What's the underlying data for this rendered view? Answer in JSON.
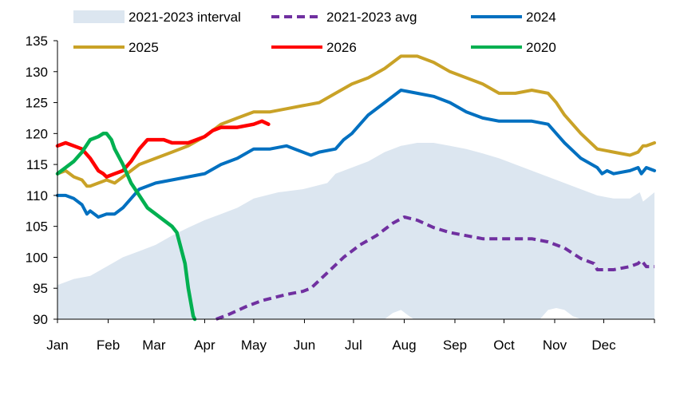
{
  "chart_data": {
    "type": "line",
    "title": "",
    "xlabel": "",
    "ylabel": "",
    "ylim": [
      90,
      135
    ],
    "yticks": [
      90,
      95,
      100,
      105,
      110,
      115,
      120,
      125,
      130,
      135
    ],
    "xlim": [
      0,
      365
    ],
    "months": [
      "Jan",
      "Feb",
      "Mar",
      "Apr",
      "May",
      "Jun",
      "Jul",
      "Aug",
      "Sep",
      "Oct",
      "Nov",
      "Dec"
    ],
    "month_starts": [
      0,
      31,
      59,
      90,
      120,
      151,
      181,
      212,
      243,
      273,
      304,
      334
    ],
    "legend": [
      {
        "name": "2021-2023 interval",
        "kind": "area",
        "color": "#dce6f0"
      },
      {
        "name": "2021-2023 avg",
        "kind": "dash",
        "color": "#7030a0"
      },
      {
        "name": "2024",
        "kind": "line",
        "color": "#0070c0"
      },
      {
        "name": "2025",
        "kind": "line",
        "color": "#c9a227"
      },
      {
        "name": "2026",
        "kind": "line",
        "color": "#ff0000"
      },
      {
        "name": "2020",
        "kind": "line",
        "color": "#00b050"
      }
    ],
    "interval": {
      "name": "2021-2023 interval",
      "color": "#dce6f0",
      "upper": [
        [
          0,
          95.5
        ],
        [
          10,
          96.5
        ],
        [
          20,
          97
        ],
        [
          30,
          98.5
        ],
        [
          40,
          100
        ],
        [
          50,
          101
        ],
        [
          60,
          102
        ],
        [
          70,
          103.5
        ],
        [
          80,
          104.8
        ],
        [
          90,
          106
        ],
        [
          100,
          107
        ],
        [
          110,
          108
        ],
        [
          120,
          109.5
        ],
        [
          135,
          110.5
        ],
        [
          150,
          111
        ],
        [
          165,
          112
        ],
        [
          170,
          113.5
        ],
        [
          180,
          114.5
        ],
        [
          190,
          115.5
        ],
        [
          200,
          117
        ],
        [
          210,
          118
        ],
        [
          220,
          118.5
        ],
        [
          230,
          118.5
        ],
        [
          240,
          118
        ],
        [
          250,
          117.5
        ],
        [
          260,
          116.8
        ],
        [
          270,
          116
        ],
        [
          280,
          115
        ],
        [
          290,
          114
        ],
        [
          300,
          113
        ],
        [
          310,
          112
        ],
        [
          320,
          111
        ],
        [
          330,
          110
        ],
        [
          340,
          109.5
        ],
        [
          350,
          109.5
        ],
        [
          356,
          110.5
        ],
        [
          358,
          109
        ],
        [
          365,
          110.5
        ]
      ],
      "lower": [
        [
          0,
          90
        ],
        [
          200,
          90
        ],
        [
          205,
          91
        ],
        [
          210,
          91.5
        ],
        [
          215,
          90.5
        ],
        [
          218,
          90
        ],
        [
          295,
          90
        ],
        [
          300,
          91.5
        ],
        [
          305,
          91.8
        ],
        [
          310,
          91.5
        ],
        [
          315,
          90.5
        ],
        [
          320,
          90
        ],
        [
          365,
          90
        ]
      ]
    },
    "series": [
      {
        "name": "2021-2023 avg",
        "color": "#7030a0",
        "dash": true,
        "width": 4,
        "points": [
          [
            97,
            90
          ],
          [
            105,
            90.8
          ],
          [
            115,
            92
          ],
          [
            125,
            93
          ],
          [
            140,
            94
          ],
          [
            150,
            94.5
          ],
          [
            155,
            95
          ],
          [
            165,
            97.5
          ],
          [
            175,
            100
          ],
          [
            185,
            102
          ],
          [
            195,
            103.5
          ],
          [
            200,
            104.5
          ],
          [
            205,
            105.5
          ],
          [
            212,
            106.5
          ],
          [
            220,
            106
          ],
          [
            230,
            104.8
          ],
          [
            240,
            104
          ],
          [
            250,
            103.5
          ],
          [
            260,
            103
          ],
          [
            270,
            103
          ],
          [
            280,
            103
          ],
          [
            290,
            103
          ],
          [
            300,
            102.5
          ],
          [
            310,
            101.5
          ],
          [
            320,
            99.8
          ],
          [
            328,
            99
          ],
          [
            330,
            98
          ],
          [
            340,
            98
          ],
          [
            350,
            98.5
          ],
          [
            355,
            99
          ],
          [
            357,
            99.5
          ],
          [
            360,
            98.5
          ],
          [
            365,
            98.5
          ]
        ]
      },
      {
        "name": "2024",
        "color": "#0070c0",
        "dash": false,
        "width": 4,
        "points": [
          [
            0,
            110
          ],
          [
            5,
            110
          ],
          [
            10,
            109.5
          ],
          [
            15,
            108.5
          ],
          [
            18,
            107
          ],
          [
            20,
            107.5
          ],
          [
            25,
            106.5
          ],
          [
            30,
            107
          ],
          [
            35,
            107
          ],
          [
            40,
            108
          ],
          [
            45,
            109.5
          ],
          [
            50,
            111
          ],
          [
            60,
            112
          ],
          [
            70,
            112.5
          ],
          [
            80,
            113
          ],
          [
            90,
            113.5
          ],
          [
            100,
            115
          ],
          [
            110,
            116
          ],
          [
            120,
            117.5
          ],
          [
            130,
            117.5
          ],
          [
            140,
            118
          ],
          [
            145,
            117.5
          ],
          [
            150,
            117
          ],
          [
            155,
            116.5
          ],
          [
            160,
            117
          ],
          [
            170,
            117.5
          ],
          [
            175,
            119
          ],
          [
            180,
            120
          ],
          [
            185,
            121.5
          ],
          [
            190,
            123
          ],
          [
            200,
            125
          ],
          [
            210,
            127
          ],
          [
            220,
            126.5
          ],
          [
            230,
            126
          ],
          [
            240,
            125
          ],
          [
            250,
            123.5
          ],
          [
            260,
            122.5
          ],
          [
            270,
            122
          ],
          [
            280,
            122
          ],
          [
            290,
            122
          ],
          [
            300,
            121.5
          ],
          [
            305,
            120
          ],
          [
            310,
            118.5
          ],
          [
            320,
            116
          ],
          [
            330,
            114.5
          ],
          [
            333,
            113.5
          ],
          [
            336,
            114
          ],
          [
            340,
            113.5
          ],
          [
            350,
            114
          ],
          [
            355,
            114.5
          ],
          [
            357,
            113.5
          ],
          [
            360,
            114.5
          ],
          [
            365,
            114
          ]
        ]
      },
      {
        "name": "2025",
        "color": "#c9a227",
        "dash": false,
        "width": 4,
        "points": [
          [
            0,
            113.5
          ],
          [
            5,
            114
          ],
          [
            10,
            113
          ],
          [
            15,
            112.5
          ],
          [
            18,
            111.5
          ],
          [
            20,
            111.5
          ],
          [
            25,
            112
          ],
          [
            30,
            112.5
          ],
          [
            35,
            112
          ],
          [
            40,
            113
          ],
          [
            45,
            114
          ],
          [
            50,
            115
          ],
          [
            60,
            116
          ],
          [
            70,
            117
          ],
          [
            80,
            118
          ],
          [
            90,
            119.5
          ],
          [
            100,
            121.5
          ],
          [
            110,
            122.5
          ],
          [
            120,
            123.5
          ],
          [
            130,
            123.5
          ],
          [
            140,
            124
          ],
          [
            150,
            124.5
          ],
          [
            160,
            125
          ],
          [
            170,
            126.5
          ],
          [
            180,
            128
          ],
          [
            190,
            129
          ],
          [
            200,
            130.5
          ],
          [
            210,
            132.5
          ],
          [
            220,
            132.5
          ],
          [
            230,
            131.5
          ],
          [
            240,
            130
          ],
          [
            250,
            129
          ],
          [
            260,
            128
          ],
          [
            270,
            126.5
          ],
          [
            280,
            126.5
          ],
          [
            290,
            127
          ],
          [
            300,
            126.5
          ],
          [
            305,
            125
          ],
          [
            310,
            123
          ],
          [
            320,
            120
          ],
          [
            330,
            117.5
          ],
          [
            340,
            117
          ],
          [
            350,
            116.5
          ],
          [
            355,
            117
          ],
          [
            358,
            118
          ],
          [
            360,
            118
          ],
          [
            365,
            118.5
          ]
        ]
      },
      {
        "name": "2026",
        "color": "#ff0000",
        "dash": false,
        "width": 4.5,
        "points": [
          [
            0,
            118
          ],
          [
            5,
            118.5
          ],
          [
            10,
            118
          ],
          [
            15,
            117.5
          ],
          [
            20,
            116
          ],
          [
            25,
            114
          ],
          [
            28,
            113.5
          ],
          [
            30,
            113
          ],
          [
            35,
            113.5
          ],
          [
            40,
            114
          ],
          [
            45,
            115.5
          ],
          [
            50,
            117.5
          ],
          [
            55,
            119
          ],
          [
            60,
            119
          ],
          [
            65,
            119
          ],
          [
            70,
            118.5
          ],
          [
            75,
            118.5
          ],
          [
            80,
            118.5
          ],
          [
            85,
            119
          ],
          [
            90,
            119.5
          ],
          [
            95,
            120.5
          ],
          [
            100,
            121
          ],
          [
            110,
            121
          ],
          [
            120,
            121.5
          ],
          [
            125,
            122
          ],
          [
            129,
            121.5
          ]
        ]
      },
      {
        "name": "2020",
        "color": "#00b050",
        "dash": false,
        "width": 4.5,
        "points": [
          [
            0,
            113.5
          ],
          [
            5,
            114.5
          ],
          [
            10,
            115.5
          ],
          [
            15,
            117
          ],
          [
            20,
            119
          ],
          [
            25,
            119.5
          ],
          [
            28,
            120
          ],
          [
            30,
            120
          ],
          [
            33,
            119
          ],
          [
            35,
            117.5
          ],
          [
            40,
            115
          ],
          [
            45,
            112
          ],
          [
            50,
            110
          ],
          [
            55,
            108
          ],
          [
            60,
            107
          ],
          [
            65,
            106
          ],
          [
            70,
            105
          ],
          [
            73,
            104
          ],
          [
            75,
            102
          ],
          [
            78,
            99
          ],
          [
            80,
            95
          ],
          [
            83,
            90.5
          ],
          [
            84,
            90
          ]
        ]
      }
    ]
  }
}
